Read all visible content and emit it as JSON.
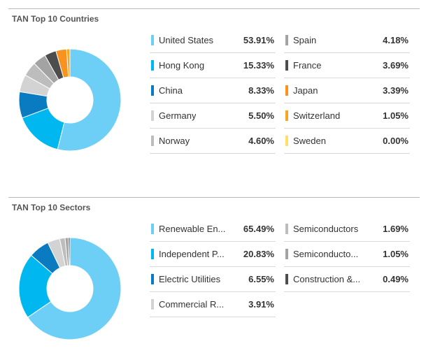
{
  "chart_data": [
    {
      "type": "pie",
      "title": "TAN Top 10 Countries",
      "categories": [
        "United States",
        "Hong Kong",
        "China",
        "Germany",
        "Norway",
        "Spain",
        "France",
        "Japan",
        "Switzerland",
        "Sweden"
      ],
      "values": [
        53.91,
        15.33,
        8.33,
        5.5,
        4.6,
        4.18,
        3.69,
        3.39,
        1.05,
        0.0
      ],
      "value_labels": [
        "53.91%",
        "15.33%",
        "8.33%",
        "5.50%",
        "4.60%",
        "4.18%",
        "3.69%",
        "3.39%",
        "1.05%",
        "0.00%"
      ],
      "colors": [
        "#6ecff6",
        "#00b7ef",
        "#0a7bc1",
        "#d3d3d3",
        "#bdbdbd",
        "#a3a3a3",
        "#4d4d4d",
        "#f7931e",
        "#f5a623",
        "#ffe066"
      ],
      "style": "donut"
    },
    {
      "type": "pie",
      "title": "TAN Top 10 Sectors",
      "categories": [
        "Renewable En...",
        "Independent P...",
        "Electric Utilities",
        "Commercial R...",
        "Semiconductors",
        "Semiconducto...",
        "Construction &..."
      ],
      "values": [
        65.49,
        20.83,
        6.55,
        3.91,
        1.69,
        1.05,
        0.49
      ],
      "value_labels": [
        "65.49%",
        "20.83%",
        "6.55%",
        "3.91%",
        "1.69%",
        "1.05%",
        "0.49%"
      ],
      "colors": [
        "#6ecff6",
        "#00b7ef",
        "#0a7bc1",
        "#d3d3d3",
        "#bdbdbd",
        "#a3a3a3",
        "#4d4d4d"
      ],
      "style": "donut"
    }
  ]
}
